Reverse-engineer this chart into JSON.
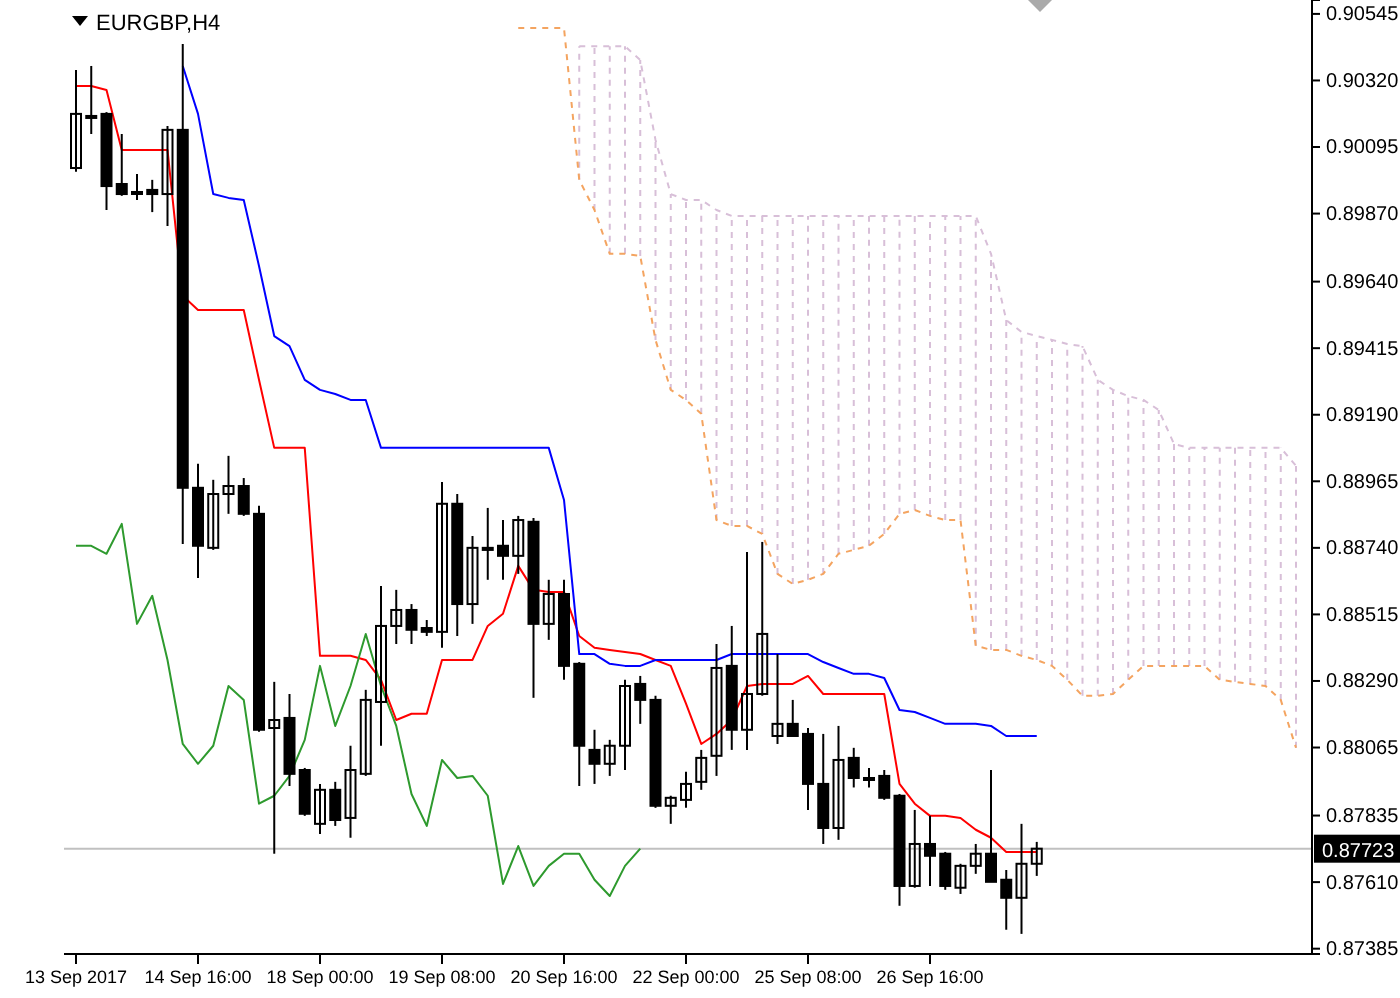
{
  "chart_data": {
    "type": "candlestick",
    "title": "EURGBP,H4",
    "categories": [
      "13 Sep 2017",
      null,
      null,
      null,
      null,
      null,
      null,
      null,
      "14 Sep 16:00",
      null,
      null,
      null,
      null,
      null,
      null,
      null,
      "18 Sep 00:00",
      null,
      null,
      null,
      null,
      null,
      null,
      null,
      "19 Sep 08:00",
      null,
      null,
      null,
      null,
      null,
      null,
      null,
      "20 Sep 16:00",
      null,
      null,
      null,
      null,
      null,
      null,
      null,
      "22 Sep 00:00",
      null,
      null,
      null,
      null,
      null,
      null,
      null,
      "25 Sep 08:00",
      null,
      null,
      null,
      null,
      null,
      null,
      null,
      "26 Sep 16:00",
      null,
      null,
      null,
      null,
      null,
      null,
      null,
      null,
      null,
      null,
      null,
      null,
      null,
      null,
      null,
      null,
      null,
      null,
      null,
      null,
      null,
      null,
      null,
      null
    ],
    "ohlc": [
      [
        0.90024,
        0.90355,
        0.90011,
        0.90207
      ],
      [
        0.902,
        0.90369,
        0.90139,
        0.902
      ],
      [
        0.90207,
        0.90213,
        0.89882,
        0.89963
      ],
      [
        0.8997,
        0.90139,
        0.8993,
        0.89936
      ],
      [
        0.89943,
        0.90004,
        0.89916,
        0.8994
      ],
      [
        0.8995,
        0.89984,
        0.89875,
        0.89936
      ],
      [
        0.89936,
        0.90166,
        0.89828,
        0.90153
      ],
      [
        0.90153,
        0.90443,
        0.88753,
        0.88943
      ],
      [
        0.88943,
        0.89024,
        0.88638,
        0.88747
      ],
      [
        0.8874,
        0.8897,
        0.88733,
        0.88922
      ],
      [
        0.88922,
        0.89051,
        0.88855,
        0.88949
      ],
      [
        0.88949,
        0.88976,
        0.88848,
        0.88855
      ],
      [
        0.88855,
        0.88882,
        0.88118,
        0.88125
      ],
      [
        0.88131,
        0.88287,
        0.87706,
        0.88158
      ],
      [
        0.88165,
        0.88246,
        0.87935,
        0.87976
      ],
      [
        0.87989,
        0.87996,
        0.87834,
        0.87841
      ],
      [
        0.87807,
        0.87942,
        0.87773,
        0.87922
      ],
      [
        0.87922,
        0.87949,
        0.878,
        0.8782
      ],
      [
        0.87827,
        0.88071,
        0.8776,
        0.87989
      ],
      [
        0.87976,
        0.8826,
        0.87969,
        0.88226
      ],
      [
        0.88219,
        0.88611,
        0.88071,
        0.88476
      ],
      [
        0.88476,
        0.88598,
        0.88415,
        0.8853
      ],
      [
        0.8853,
        0.8855,
        0.88415,
        0.88463
      ],
      [
        0.88469,
        0.88496,
        0.88442,
        0.88456
      ],
      [
        0.88456,
        0.88963,
        0.88402,
        0.88889
      ],
      [
        0.88889,
        0.88922,
        0.88442,
        0.8855
      ],
      [
        0.8855,
        0.8878,
        0.88483,
        0.8874
      ],
      [
        0.8874,
        0.88875,
        0.88632,
        0.88733
      ],
      [
        0.88747,
        0.88834,
        0.88632,
        0.88713
      ],
      [
        0.88713,
        0.88848,
        0.88652,
        0.88834
      ],
      [
        0.88828,
        0.88841,
        0.88233,
        0.88483
      ],
      [
        0.88483,
        0.88632,
        0.88429,
        0.88584
      ],
      [
        0.88584,
        0.88632,
        0.88294,
        0.88341
      ],
      [
        0.88348,
        0.88354,
        0.87935,
        0.88071
      ],
      [
        0.88057,
        0.88125,
        0.87942,
        0.8801
      ],
      [
        0.8801,
        0.88091,
        0.87969,
        0.88071
      ],
      [
        0.88071,
        0.88294,
        0.87989,
        0.88273
      ],
      [
        0.8828,
        0.88307,
        0.88145,
        0.88226
      ],
      [
        0.88226,
        0.8824,
        0.87861,
        0.87868
      ],
      [
        0.87868,
        0.87902,
        0.87807,
        0.87895
      ],
      [
        0.87888,
        0.87983,
        0.87861,
        0.87942
      ],
      [
        0.87949,
        0.88057,
        0.87922,
        0.8803
      ],
      [
        0.88037,
        0.88415,
        0.87969,
        0.88334
      ],
      [
        0.88341,
        0.88476,
        0.88057,
        0.88125
      ],
      [
        0.88125,
        0.88726,
        0.88057,
        0.88246
      ],
      [
        0.88246,
        0.8876,
        0.8824,
        0.88449
      ],
      [
        0.88104,
        0.88381,
        0.88077,
        0.88145
      ],
      [
        0.88145,
        0.88226,
        0.88104,
        0.88104
      ],
      [
        0.88111,
        0.88131,
        0.87854,
        0.87942
      ],
      [
        0.87942,
        0.88111,
        0.87739,
        0.87793
      ],
      [
        0.87793,
        0.88138,
        0.87753,
        0.88023
      ],
      [
        0.8803,
        0.88064,
        0.8793,
        0.87962
      ],
      [
        0.87962,
        0.87996,
        0.8793,
        0.87962
      ],
      [
        0.87969,
        0.87989,
        0.87888,
        0.87895
      ],
      [
        0.87902,
        0.87908,
        0.8753,
        0.87597
      ],
      [
        0.87597,
        0.87854,
        0.87591,
        0.87739
      ],
      [
        0.87739,
        0.87834,
        0.87597,
        0.87699
      ],
      [
        0.87706,
        0.87712,
        0.87584,
        0.87597
      ],
      [
        0.87591,
        0.87672,
        0.8757,
        0.87665
      ],
      [
        0.87665,
        0.87739,
        0.87638,
        0.87706
      ],
      [
        0.87706,
        0.87989,
        0.87611,
        0.87611
      ],
      [
        0.87618,
        0.87651,
        0.87449,
        0.87557
      ],
      [
        0.87557,
        0.87807,
        0.87435,
        0.87672
      ],
      [
        0.87672,
        0.87746,
        0.87631,
        0.87723
      ],
      null,
      null,
      null,
      null,
      null,
      null,
      null,
      null,
      null,
      null,
      null,
      null,
      null,
      null,
      null,
      null,
      null
    ],
    "series": [
      {
        "type": "line",
        "color": "#ff0000",
        "values": [
          0.90301,
          0.90301,
          0.90288,
          0.90085,
          0.90085,
          0.90085,
          0.90085,
          0.89592,
          0.89544,
          0.89544,
          0.89544,
          0.89544,
          0.89308,
          0.89078,
          0.89078,
          0.89078,
          0.88375,
          0.88375,
          0.88375,
          0.88361,
          0.88294,
          0.88158,
          0.88179,
          0.88179,
          0.88361,
          0.88361,
          0.88361,
          0.88476,
          0.88517,
          0.88679,
          0.88598,
          0.88591,
          0.88591,
          0.88442,
          0.88402,
          0.88395,
          0.88388,
          0.88381,
          0.88361,
          0.88341,
          0.88213,
          0.88077,
          0.88111,
          0.88158,
          0.88273,
          0.8828,
          0.8828,
          0.8828,
          0.88307,
          0.88246,
          0.88246,
          0.88246,
          0.88246,
          0.88246,
          0.87942,
          0.87875,
          0.87834,
          0.87834,
          0.87827,
          0.87787,
          0.8776,
          0.87712,
          0.87712,
          0.87712,
          null,
          null,
          null,
          null,
          null,
          null,
          null,
          null,
          null,
          null,
          null,
          null,
          null,
          null,
          null,
          null,
          null
        ]
      },
      {
        "type": "line",
        "color": "#0000ff",
        "values": [
          null,
          null,
          null,
          null,
          null,
          null,
          null,
          0.90369,
          0.90207,
          0.89936,
          0.89923,
          0.89916,
          0.89693,
          0.89456,
          0.89422,
          0.89308,
          0.89274,
          0.8926,
          0.8924,
          0.8924,
          0.89078,
          0.89078,
          0.89078,
          0.89078,
          0.89078,
          0.89078,
          0.89078,
          0.89078,
          0.89078,
          0.89078,
          0.89078,
          0.89078,
          0.88902,
          0.88381,
          0.88381,
          0.88348,
          0.88341,
          0.88341,
          0.88361,
          0.88361,
          0.88361,
          0.88361,
          0.88361,
          0.88381,
          0.88381,
          0.88381,
          0.88381,
          0.88381,
          0.88381,
          0.88354,
          0.88334,
          0.88314,
          0.88314,
          0.883,
          0.88192,
          0.88185,
          0.88165,
          0.88145,
          0.88145,
          0.88145,
          0.88138,
          0.88104,
          0.88104,
          0.88104,
          null,
          null,
          null,
          null,
          null,
          null,
          null,
          null,
          null,
          null,
          null,
          null,
          null,
          null,
          null,
          null,
          null
        ]
      },
      {
        "type": "line",
        "color": "#2e9a2e",
        "values": [
          0.88747,
          0.88747,
          0.8872,
          0.88821,
          0.88483,
          0.88578,
          0.88361,
          0.88077,
          0.8801,
          0.88071,
          0.88273,
          0.88226,
          0.87875,
          0.87902,
          0.87969,
          0.88091,
          0.88341,
          0.88138,
          0.88273,
          0.88449,
          0.88273,
          0.88138,
          0.87908,
          0.878,
          0.88023,
          0.87962,
          0.87969,
          0.87902,
          0.87604,
          0.87732,
          0.87597,
          0.87665,
          0.87706,
          0.87706,
          0.87618,
          0.87563,
          0.87665,
          0.87723,
          null,
          null,
          null,
          null,
          null,
          null,
          null,
          null,
          null,
          null,
          null,
          null,
          null,
          null,
          null,
          null,
          null,
          null,
          null,
          null,
          null,
          null,
          null,
          null,
          null,
          null,
          null,
          null,
          null,
          null,
          null,
          null,
          null,
          null,
          null,
          null,
          null,
          null,
          null,
          null,
          null,
          null,
          null
        ]
      },
      {
        "type": "line",
        "color": "#f4a460",
        "line_style": "dashed",
        "values": [
          null,
          null,
          null,
          null,
          null,
          null,
          null,
          null,
          null,
          null,
          null,
          null,
          null,
          null,
          null,
          null,
          null,
          null,
          null,
          null,
          null,
          null,
          null,
          null,
          null,
          null,
          null,
          null,
          null,
          0.90497,
          0.90497,
          0.90497,
          0.90497,
          0.89984,
          0.89882,
          0.89734,
          0.89734,
          0.89727,
          0.89443,
          0.89274,
          0.8924,
          0.89193,
          0.88834,
          0.88814,
          0.88814,
          0.88787,
          0.88652,
          0.88618,
          0.88632,
          0.88652,
          0.8872,
          0.88733,
          0.88747,
          0.88787,
          0.88855,
          0.88868,
          0.88848,
          0.88834,
          0.88834,
          0.88409,
          0.88395,
          0.88395,
          0.88375,
          0.88361,
          0.88341,
          0.88294,
          0.8824,
          0.8824,
          0.88246,
          0.88294,
          0.88341,
          0.88341,
          0.88341,
          0.88341,
          0.88341,
          0.88294,
          0.88287,
          0.8828,
          0.88273,
          0.88226,
          0.88064
        ]
      },
      {
        "type": "line",
        "color": "#d8bfd8",
        "line_style": "dashed",
        "values": [
          null,
          null,
          null,
          null,
          null,
          null,
          null,
          null,
          null,
          null,
          null,
          null,
          null,
          null,
          null,
          null,
          null,
          null,
          null,
          null,
          null,
          null,
          null,
          null,
          null,
          null,
          null,
          null,
          null,
          null,
          null,
          null,
          null,
          0.90436,
          0.90436,
          0.90436,
          0.90436,
          0.90389,
          0.90119,
          0.89936,
          0.89916,
          0.89916,
          0.89882,
          0.89862,
          0.89862,
          0.89862,
          0.89862,
          0.89862,
          0.89862,
          0.89862,
          0.89862,
          0.89862,
          0.89862,
          0.89862,
          0.89862,
          0.89862,
          0.89862,
          0.89862,
          0.89862,
          0.89862,
          0.89734,
          0.8951,
          0.8947,
          0.89456,
          0.89443,
          0.89429,
          0.89422,
          0.89308,
          0.89274,
          0.89253,
          0.8924,
          0.89206,
          0.89091,
          0.89078,
          0.89078,
          0.89078,
          0.89078,
          0.89078,
          0.89078,
          0.89078,
          0.89017
        ]
      }
    ],
    "ylim": [
      0.87367,
      0.90592
    ],
    "yticks": [
      0.90545,
      {
        "value": 0.9032,
        "label": "0.90320"
      },
      0.90095,
      {
        "value": 0.8987,
        "label": "0.89870"
      },
      {
        "value": 0.8964,
        "label": "0.89640"
      },
      0.89415,
      {
        "value": 0.8919,
        "label": "0.89190"
      },
      0.88965,
      {
        "value": 0.8874,
        "label": "0.88740"
      },
      0.88515,
      {
        "value": 0.8829,
        "label": "0.88290"
      },
      0.88065,
      0.87835,
      {
        "value": 0.8761,
        "label": "0.87610"
      },
      0.87385
    ],
    "ref_lines": [
      {
        "axis": "y",
        "value": 0.87723,
        "label": "0.87723",
        "color": "#c0c0c0"
      }
    ]
  }
}
